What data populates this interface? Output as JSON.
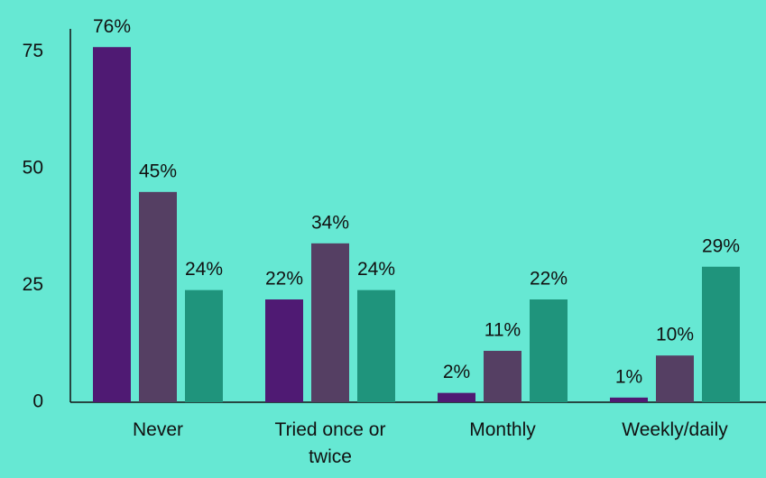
{
  "chart_data": {
    "type": "bar",
    "categories": [
      "Never",
      "Tried once or twice",
      "Monthly",
      "Weekly/daily"
    ],
    "series": [
      {
        "color": "#4f1a73",
        "values": [
          76,
          22,
          2,
          1
        ],
        "value_labels": [
          "76%",
          "22%",
          "2%",
          "1%"
        ]
      },
      {
        "color": "#553f63",
        "values": [
          45,
          34,
          11,
          10
        ],
        "value_labels": [
          "45%",
          "34%",
          "11%",
          "10%"
        ]
      },
      {
        "color": "#1f947c",
        "values": [
          24,
          24,
          22,
          29
        ],
        "value_labels": [
          "24%",
          "24%",
          "22%",
          "29%"
        ]
      }
    ],
    "ylim": [
      0,
      80
    ],
    "yticks": [
      0,
      25,
      50,
      75
    ],
    "grid": false
  }
}
